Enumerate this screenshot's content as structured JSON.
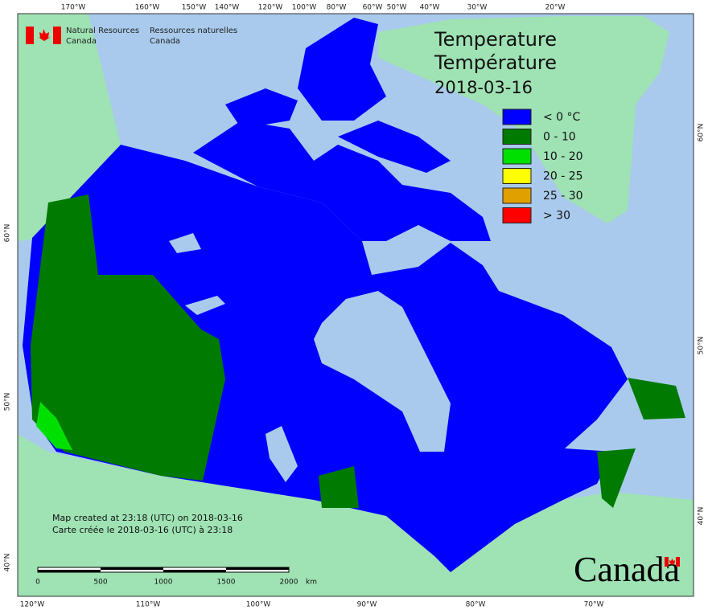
{
  "header": {
    "agency_en": [
      "Natural Resources",
      "Canada"
    ],
    "agency_fr": [
      "Ressources naturelles",
      "Canada"
    ]
  },
  "title": {
    "en": "Temperature",
    "fr": "Température",
    "date": "2018-03-16"
  },
  "legend": [
    {
      "label": "< 0 °C",
      "color": "#0000ff"
    },
    {
      "label": "0 - 10",
      "color": "#007a00"
    },
    {
      "label": "10 - 20",
      "color": "#00e000"
    },
    {
      "label": "20 - 25",
      "color": "#ffff00"
    },
    {
      "label": "25 - 30",
      "color": "#e0a000"
    },
    {
      "label": "> 30",
      "color": "#ff0000"
    }
  ],
  "graticule": {
    "top": [
      "170°W",
      "160°W",
      "150°W",
      "140°W",
      "120°W",
      "100°W",
      "80°W",
      "60°W",
      "50°W",
      "40°W",
      "30°W",
      "20°W"
    ],
    "bottom": [
      "120°W",
      "110°W",
      "100°W",
      "90°W",
      "80°W",
      "70°W"
    ],
    "left": [
      "60°N",
      "50°N",
      "40°N"
    ],
    "right": [
      "60°N",
      "50°N",
      "40°N"
    ]
  },
  "footer": {
    "created_en": "Map created at 23:18 (UTC) on 2018-03-16",
    "created_fr": "Carte créée le 2018-03-16 (UTC) à 23:18"
  },
  "scale_bar": {
    "ticks": [
      "0",
      "500",
      "1000",
      "1500",
      "2000"
    ],
    "unit": "km"
  },
  "wordmark": "Canada"
}
